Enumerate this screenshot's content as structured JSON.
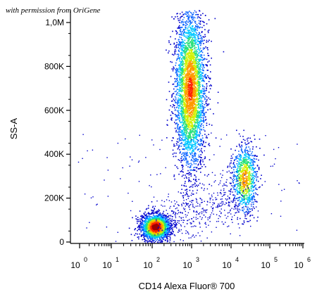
{
  "watermark": "with permission from OriGene",
  "chart_data": {
    "type": "scatter",
    "style": "density-dot-plot",
    "xlabel": "CD14 Alexa Fluor® 700",
    "ylabel": "SS-A",
    "x_scale": "log",
    "x_ticks": [
      {
        "base": "10",
        "exp": "0",
        "value": 1
      },
      {
        "base": "10",
        "exp": "1",
        "value": 10
      },
      {
        "base": "10",
        "exp": "2",
        "value": 100
      },
      {
        "base": "10",
        "exp": "3",
        "value": 1000
      },
      {
        "base": "10",
        "exp": "4",
        "value": 10000
      },
      {
        "base": "10",
        "exp": "5",
        "value": 100000
      },
      {
        "base": "10",
        "exp": "6",
        "value": 1000000
      }
    ],
    "y_scale": "linear",
    "ylim": [
      0,
      1050000
    ],
    "y_ticks": [
      {
        "label": "0",
        "value": 0
      },
      {
        "label": "200K",
        "value": 200000
      },
      {
        "label": "400K",
        "value": 400000
      },
      {
        "label": "600K",
        "value": 600000
      },
      {
        "label": "800K",
        "value": 800000
      },
      {
        "label": "1,0M",
        "value": 1000000
      }
    ],
    "populations": [
      {
        "center_x": 120,
        "center_y": 70000,
        "count": 2200
      },
      {
        "center_x": 900,
        "center_y": 700000,
        "count": 3600
      },
      {
        "center_x": 22000,
        "center_y": 290000,
        "count": 900
      }
    ],
    "grid": false,
    "legend": "none",
    "colors": [
      "#0000cc",
      "#0a64ff",
      "#00c8ff",
      "#28e07a",
      "#d2f000",
      "#ff9900",
      "#ff2200",
      "#a00000"
    ]
  }
}
